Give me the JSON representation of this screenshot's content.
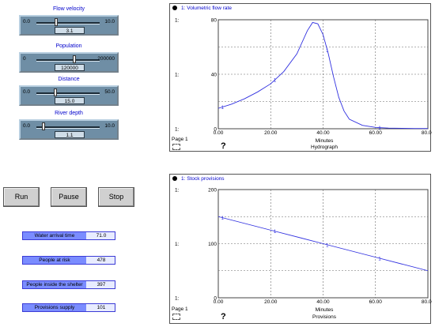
{
  "sliders": [
    {
      "label": "Flow velocity",
      "min": "0.0",
      "max": "10.0",
      "value": "3.1",
      "position": 0.31
    },
    {
      "label": "Population",
      "min": "0",
      "max": "200000",
      "value": "120000",
      "position": 0.6
    },
    {
      "label": "Distance",
      "min": "0.0",
      "max": "50.0",
      "value": "15.0",
      "position": 0.3
    },
    {
      "label": "River depth",
      "min": "0.0",
      "max": "10.0",
      "value": "1.1",
      "position": 0.11
    }
  ],
  "buttons": {
    "run": "Run",
    "pause": "Pause",
    "stop": "Stop"
  },
  "meters": [
    {
      "label": "Water arrival time",
      "value": "71.0"
    },
    {
      "label": "People at risk",
      "value": "478"
    },
    {
      "label": "People inside the shelter",
      "value": "397"
    },
    {
      "label": "Provisions supply",
      "value": "101"
    }
  ],
  "graph1": {
    "title": "1: Volumetric flow rate",
    "page": "Page 1",
    "help": "?",
    "xunit": "Minutes",
    "caption": "Hydrograph",
    "series_prefix": "1:"
  },
  "graph2": {
    "title": "1: Stock provisions",
    "page": "Page 1",
    "help": "?",
    "xunit": "Minutes",
    "caption": "Provisions",
    "series_prefix": "1:"
  },
  "chart_data": [
    {
      "type": "line",
      "title": "1: Volumetric flow rate",
      "xlabel": "Minutes",
      "caption": "Hydrograph",
      "xlim": [
        0,
        80
      ],
      "ylim": [
        0,
        80
      ],
      "xticks": [
        "0.00",
        "20.00",
        "40.00",
        "60.00",
        "80.00"
      ],
      "yticks": [
        "0",
        "40",
        "80"
      ],
      "series": [
        {
          "marker": "1",
          "color": "#3030e0",
          "x": [
            0,
            5,
            10,
            15,
            20,
            25,
            30,
            34,
            36,
            38,
            40,
            42,
            44,
            46,
            48,
            50,
            55,
            60,
            65,
            70,
            75,
            80
          ],
          "y": [
            15,
            18,
            22,
            27,
            33,
            42,
            55,
            72,
            78,
            77,
            69,
            55,
            38,
            23,
            13,
            7,
            2.5,
            1,
            0.5,
            0.3,
            0.2,
            0.2
          ]
        }
      ],
      "grid": true
    },
    {
      "type": "line",
      "title": "1: Stock provisions",
      "xlabel": "Minutes",
      "caption": "Provisions",
      "xlim": [
        0,
        80
      ],
      "ylim": [
        0,
        200
      ],
      "xticks": [
        "0.00",
        "20.00",
        "40.00",
        "60.00",
        "80.00"
      ],
      "yticks": [
        "0",
        "100",
        "200"
      ],
      "series": [
        {
          "marker": "1",
          "color": "#3030e0",
          "x": [
            0,
            20,
            40,
            60,
            80
          ],
          "y": [
            150,
            125,
            100,
            75,
            50
          ]
        }
      ],
      "grid": true
    }
  ]
}
